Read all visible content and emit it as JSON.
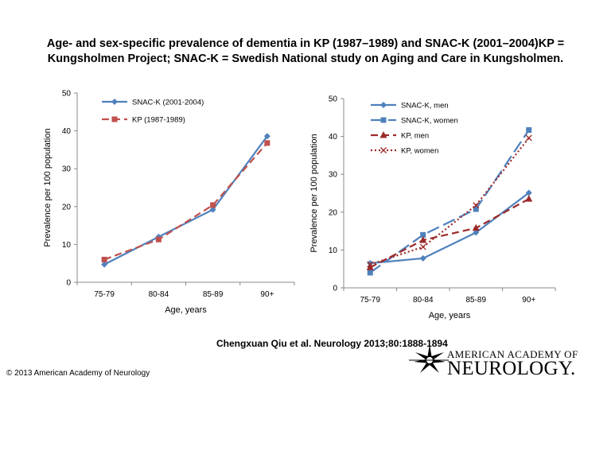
{
  "title": {
    "line1": "Age- and sex-specific prevalence of dementia in KP (1987–1989) and SNAC-K (2001–2004)KP =",
    "line2": "Kungsholmen Project; SNAC-K = Swedish National study on Aging and Care in Kungsholmen."
  },
  "citation": "Chengxuan Qiu et al. Neurology 2013;80:1888-1894",
  "copyright": "© 2013 American Academy of Neurology",
  "logo": {
    "line1": "AMERICAN ACADEMY OF",
    "line2": "NEUROLOGY."
  },
  "colors": {
    "blue": "#4F81BD",
    "red": "#C0504D",
    "darkred": "#9C2A2A"
  },
  "chart_data": [
    {
      "type": "line",
      "title": "",
      "xlabel": "Age, years",
      "ylabel": "Prevalence per 100 population",
      "ylim": [
        0,
        50
      ],
      "yticks": [
        "0",
        "10",
        "20",
        "30",
        "40",
        "50"
      ],
      "categories": [
        "75-79",
        "80-84",
        "85-89",
        "90+"
      ],
      "legend_position": "top-left",
      "series": [
        {
          "name": "SNAC-K (2001-2004)",
          "values": [
            4.7,
            12.0,
            19.2,
            38.6
          ],
          "color": "#4F81BD",
          "dash": "solid",
          "marker": "diamond"
        },
        {
          "name": "KP (1987-1989)",
          "values": [
            6.0,
            11.3,
            20.4,
            36.8
          ],
          "color": "#C0504D",
          "dash": "dash",
          "marker": "square"
        }
      ]
    },
    {
      "type": "line",
      "title": "",
      "xlabel": "Age, years",
      "ylabel": "Prevalence per 100 population",
      "ylim": [
        0,
        50
      ],
      "yticks": [
        "0",
        "10",
        "20",
        "30",
        "40",
        "50"
      ],
      "categories": [
        "75-79",
        "80-84",
        "85-89",
        "90+"
      ],
      "legend_position": "top-left",
      "series": [
        {
          "name": "SNAC-K, men",
          "values": [
            6.5,
            7.8,
            14.6,
            25.1
          ],
          "color": "#4F81BD",
          "dash": "solid",
          "marker": "diamond"
        },
        {
          "name": "SNAC-K, women",
          "values": [
            4.0,
            14.0,
            20.8,
            41.7
          ],
          "color": "#4F81BD",
          "dash": "longdash",
          "marker": "square"
        },
        {
          "name": "KP, men",
          "values": [
            5.4,
            12.6,
            15.8,
            23.5
          ],
          "color": "#9C2A2A",
          "dash": "dash",
          "marker": "triangle"
        },
        {
          "name": "KP, women",
          "values": [
            6.2,
            10.8,
            21.8,
            39.6
          ],
          "color": "#9C2A2A",
          "dash": "dot",
          "marker": "x"
        }
      ]
    }
  ]
}
